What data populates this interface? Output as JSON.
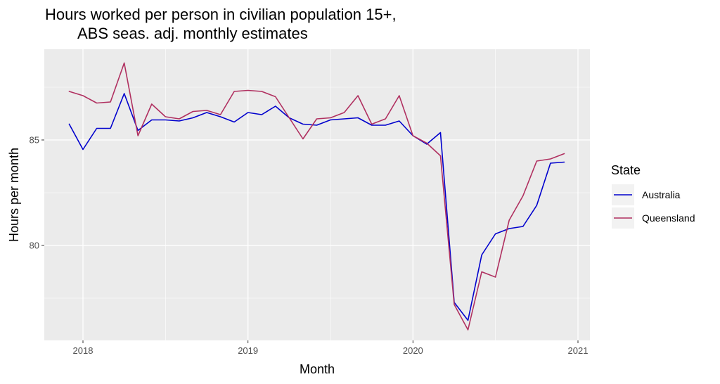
{
  "chart_data": {
    "type": "line",
    "title_line1": "Hours worked per person in civilian population 15+,",
    "title_line2": "ABS seas. adj. monthly estimates",
    "xlabel": "Month",
    "ylabel": "Hours per month",
    "x_ticks": [
      "2018",
      "2019",
      "2020",
      "2021"
    ],
    "y_ticks": [
      "80",
      "85"
    ],
    "ylim": [
      75.5,
      89.3
    ],
    "x": [
      "2017-12",
      "2018-01",
      "2018-02",
      "2018-03",
      "2018-04",
      "2018-05",
      "2018-06",
      "2018-07",
      "2018-08",
      "2018-09",
      "2018-10",
      "2018-11",
      "2018-12",
      "2019-01",
      "2019-02",
      "2019-03",
      "2019-04",
      "2019-05",
      "2019-06",
      "2019-07",
      "2019-08",
      "2019-09",
      "2019-10",
      "2019-11",
      "2019-12",
      "2020-01",
      "2020-02",
      "2020-03",
      "2020-04",
      "2020-05",
      "2020-06",
      "2020-07",
      "2020-08",
      "2020-09",
      "2020-10",
      "2020-11",
      "2020-12"
    ],
    "series": [
      {
        "name": "Australia",
        "color": "#0000CD",
        "values": [
          85.75,
          84.55,
          85.55,
          85.55,
          87.2,
          85.45,
          85.95,
          85.95,
          85.9,
          86.05,
          86.3,
          86.1,
          85.85,
          86.3,
          86.2,
          86.6,
          86.05,
          85.75,
          85.7,
          85.95,
          86.0,
          86.05,
          85.7,
          85.7,
          85.9,
          85.2,
          84.8,
          85.35,
          77.3,
          76.45,
          79.55,
          80.55,
          80.8,
          80.9,
          81.9,
          83.9,
          83.95
        ]
      },
      {
        "name": "Queensland",
        "color": "#B03060",
        "values": [
          87.3,
          87.1,
          86.75,
          86.8,
          88.65,
          85.2,
          86.7,
          86.1,
          86.0,
          86.35,
          86.4,
          86.2,
          87.3,
          87.35,
          87.3,
          87.05,
          86.05,
          85.05,
          86.0,
          86.05,
          86.3,
          87.1,
          85.75,
          86.0,
          87.1,
          85.2,
          84.85,
          84.25,
          77.2,
          76.0,
          78.75,
          78.5,
          81.2,
          82.35,
          84.0,
          84.1,
          84.35
        ]
      }
    ],
    "legend": {
      "title": "State",
      "position": "right"
    },
    "grid": true,
    "panel_background": "#EBEBEB",
    "grid_color": "#FFFFFF"
  }
}
